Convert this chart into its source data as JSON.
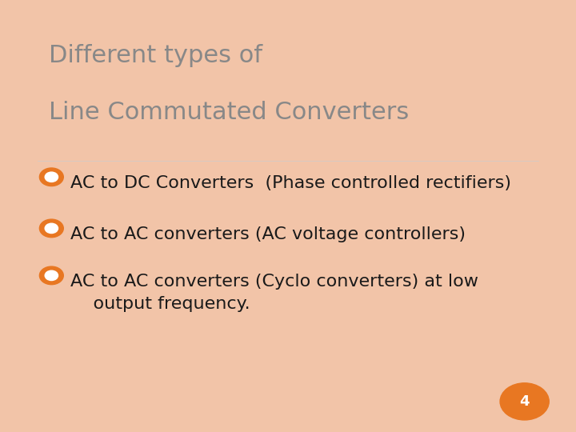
{
  "title_line1": "Different types of",
  "title_line2": "Line Commutated Converters",
  "title_color": "#888888",
  "title_fontsize": 22,
  "bullet_color": "#E87722",
  "bullet_text_color": "#1a1a1a",
  "bullet_fontsize": 16,
  "bullets": [
    "AC to DC Converters  (Phase controlled rectifiers)",
    "AC to AC converters (AC voltage controllers)",
    "AC to AC converters (Cyclo converters) at low\n    output frequency."
  ],
  "background_color": "#FFFFFF",
  "border_color": "#F2C4A8",
  "page_number": "4",
  "page_number_color": "#E87722",
  "page_number_text_color": "#FFFFFF",
  "page_number_fontsize": 13
}
